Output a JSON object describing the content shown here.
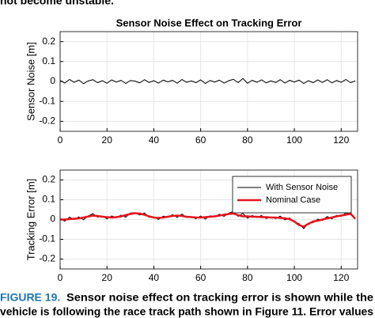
{
  "top_text": "not become unstable.",
  "chart_data": [
    {
      "type": "line",
      "title": "Sensor Noise Effect on Tracking Error",
      "y_label": "Sensor Noise [m]",
      "x": [
        0,
        2,
        4,
        6,
        8,
        10,
        12,
        14,
        16,
        18,
        20,
        22,
        24,
        26,
        28,
        30,
        32,
        34,
        36,
        38,
        40,
        42,
        44,
        46,
        48,
        50,
        52,
        54,
        56,
        58,
        60,
        62,
        64,
        66,
        68,
        70,
        72,
        74,
        76,
        78,
        80,
        82,
        84,
        86,
        88,
        90,
        92,
        94,
        96,
        98,
        100,
        102,
        104,
        106,
        108,
        110,
        112,
        114,
        116,
        118,
        120,
        122,
        124,
        126
      ],
      "series": [
        {
          "color": "#000000",
          "values": [
            0.005,
            -0.008,
            0.01,
            -0.004,
            0.007,
            -0.011,
            0.003,
            0.009,
            -0.006,
            0.004,
            -0.009,
            0.008,
            -0.003,
            0.006,
            -0.01,
            0.005,
            0.002,
            -0.007,
            0.009,
            -0.005,
            0.004,
            -0.008,
            0.007,
            -0.002,
            0.006,
            -0.009,
            0.01,
            -0.004,
            0.003,
            -0.006,
            0.008,
            -0.01,
            0.005,
            -0.003,
            0.007,
            -0.008,
            0.004,
            0.011,
            -0.006,
            0.015,
            -0.009,
            0.006,
            -0.004,
            0.008,
            -0.007,
            0.003,
            -0.005,
            0.009,
            -0.008,
            0.006,
            -0.003,
            0.007,
            -0.01,
            0.004,
            -0.006,
            0.008,
            -0.005,
            0.009,
            -0.007,
            0.005,
            -0.004,
            0.01,
            -0.006,
            0.003
          ]
        }
      ],
      "xlim": [
        0,
        127
      ],
      "xticks": [
        0,
        20,
        40,
        60,
        80,
        100,
        120
      ],
      "ylim": [
        -0.25,
        0.25
      ],
      "yticks": [
        -0.2,
        -0.1,
        0,
        0.1,
        0.2
      ],
      "grid": true
    },
    {
      "type": "line",
      "y_label": "Tracking Error [m]",
      "x": [
        0,
        2,
        4,
        6,
        8,
        10,
        12,
        14,
        16,
        18,
        20,
        22,
        24,
        26,
        28,
        30,
        32,
        34,
        36,
        38,
        40,
        42,
        44,
        46,
        48,
        50,
        52,
        54,
        56,
        58,
        60,
        62,
        64,
        66,
        68,
        70,
        72,
        74,
        76,
        78,
        80,
        82,
        84,
        86,
        88,
        90,
        92,
        94,
        96,
        98,
        100,
        102,
        104,
        106,
        108,
        110,
        112,
        114,
        116,
        118,
        120,
        122,
        124,
        126
      ],
      "series": [
        {
          "name": "With Sensor Noise",
          "color": "#000000",
          "width": 1,
          "values": [
            0.005,
            -0.008,
            0.012,
            0,
            0.013,
            -0.001,
            0.018,
            0.029,
            0.012,
            0.018,
            0.003,
            0.018,
            0.009,
            0.022,
            0.012,
            0.033,
            0.034,
            0.023,
            0.033,
            0.011,
            0.014,
            0,
            0.017,
            0.012,
            0.024,
            0.011,
            0.028,
            0.01,
            0.015,
            0.004,
            0.018,
            0.002,
            0.019,
            0.013,
            0.027,
            0.016,
            0.032,
            0.041,
            0.016,
            0.031,
            0.007,
            0.02,
            0.01,
            0.02,
            0.005,
            0.013,
            0.005,
            0.017,
            -0.002,
            0.008,
            -0.013,
            -0.021,
            -0.046,
            -0.018,
            -0.016,
            0.002,
            -0.005,
            0.015,
            0.003,
            0.021,
            0.016,
            0.034,
            0.024,
            0.007
          ]
        },
        {
          "name": "Nominal Case",
          "color": "#e8141c",
          "width": 2.5,
          "values": [
            0,
            0,
            0.002,
            0.004,
            0.006,
            0.01,
            0.015,
            0.02,
            0.018,
            0.014,
            0.012,
            0.01,
            0.012,
            0.016,
            0.022,
            0.028,
            0.032,
            0.03,
            0.024,
            0.016,
            0.01,
            0.008,
            0.01,
            0.014,
            0.018,
            0.02,
            0.018,
            0.014,
            0.012,
            0.01,
            0.01,
            0.012,
            0.014,
            0.016,
            0.02,
            0.024,
            0.028,
            0.03,
            0.022,
            0.016,
            0.016,
            0.014,
            0.014,
            0.012,
            0.012,
            0.01,
            0.01,
            0.008,
            0.006,
            0.002,
            -0.01,
            -0.028,
            -0.036,
            -0.022,
            -0.01,
            -0.006,
            0,
            0.006,
            0.01,
            0.016,
            0.02,
            0.024,
            0.03,
            0.004
          ]
        }
      ],
      "xlim": [
        0,
        127
      ],
      "xticks": [
        0,
        20,
        40,
        60,
        80,
        100,
        120
      ],
      "ylim": [
        -0.25,
        0.25
      ],
      "yticks": [
        -0.2,
        -0.1,
        0,
        0.1,
        0.2
      ],
      "grid": true,
      "legend": "northeast"
    }
  ],
  "caption": {
    "label": "FIGURE 19.",
    "lines": [
      "Sensor noise effect on tracking error is shown while the",
      "vehicle is following the race track path shown in Figure 11. Error values"
    ]
  }
}
